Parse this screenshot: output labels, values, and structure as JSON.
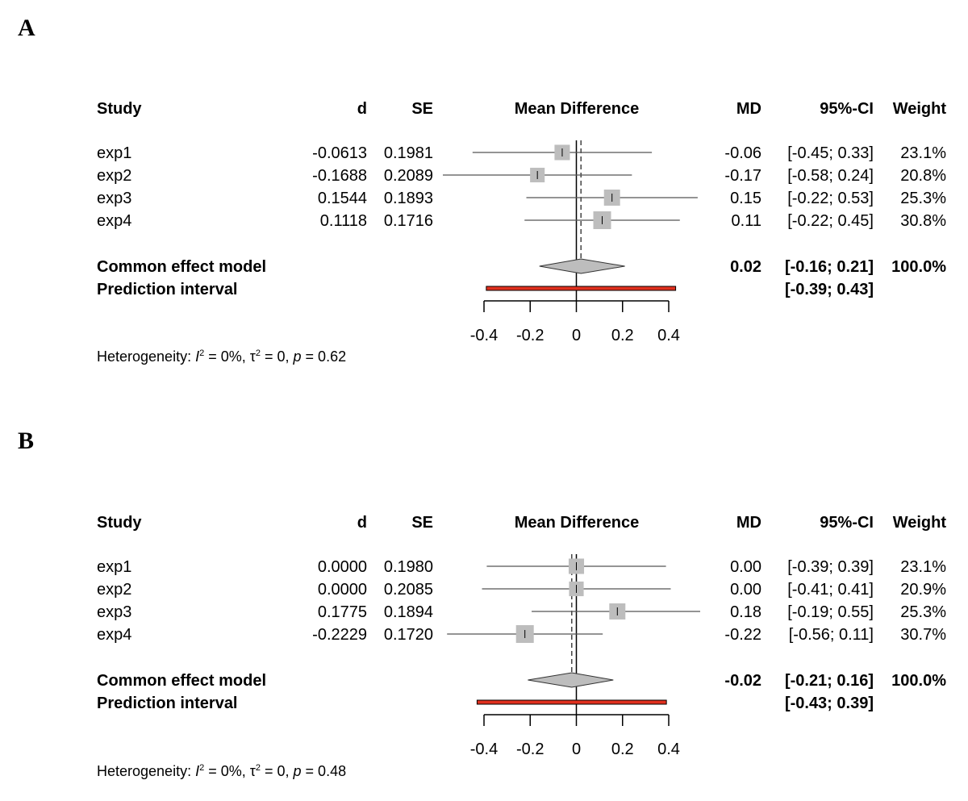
{
  "panels": [
    {
      "letter": "A",
      "headers": {
        "study": "Study",
        "d": "d",
        "se": "SE",
        "plot": "Mean Difference",
        "md": "MD",
        "ci": "95%-CI",
        "weight": "Weight"
      },
      "studies": [
        {
          "name": "exp1",
          "d": "-0.0613",
          "se": "0.1981",
          "md_text": "-0.06",
          "ci_text": "[-0.45; 0.33]",
          "weight_text": "23.1%",
          "md": -0.0613,
          "lower": -0.4496,
          "upper": 0.327,
          "weight": 23.1
        },
        {
          "name": "exp2",
          "d": "-0.1688",
          "se": "0.2089",
          "md_text": "-0.17",
          "ci_text": "[-0.58; 0.24]",
          "weight_text": "20.8%",
          "md": -0.1688,
          "lower": -0.5782,
          "upper": 0.2406,
          "weight": 20.8
        },
        {
          "name": "exp3",
          "d": "0.1544",
          "se": "0.1893",
          "md_text": "0.15",
          "ci_text": "[-0.22; 0.53]",
          "weight_text": "25.3%",
          "md": 0.1544,
          "lower": -0.2166,
          "upper": 0.5254,
          "weight": 25.3
        },
        {
          "name": "exp4",
          "d": "0.1118",
          "se": "0.1716",
          "md_text": "0.11",
          "ci_text": "[-0.22; 0.45]",
          "weight_text": "30.8%",
          "md": 0.1118,
          "lower": -0.2245,
          "upper": 0.4481,
          "weight": 30.8
        }
      ],
      "common": {
        "label": "Common effect model",
        "md_text": "0.02",
        "ci_text": "[-0.16; 0.21]",
        "weight_text": "100.0%",
        "md": 0.02,
        "lower": -0.16,
        "upper": 0.21
      },
      "prediction": {
        "label": "Prediction interval",
        "ci_text": "[-0.39; 0.43]",
        "lower": -0.39,
        "upper": 0.43
      },
      "axis": {
        "min": -0.4,
        "max": 0.4,
        "ticks": [
          -0.4,
          -0.2,
          0,
          0.2,
          0.4
        ],
        "tick_labels": [
          "-0.4",
          "-0.2",
          "0",
          "0.2",
          "0.4"
        ],
        "null_value": 0
      },
      "heterogeneity": {
        "prefix": "Heterogeneity: ",
        "i2": "I",
        "i2_value": " = 0%, ",
        "tau": "τ",
        "tau_value": " = 0, ",
        "p": "p",
        "p_value": " = 0.62"
      }
    },
    {
      "letter": "B",
      "headers": {
        "study": "Study",
        "d": "d",
        "se": "SE",
        "plot": "Mean Difference",
        "md": "MD",
        "ci": "95%-CI",
        "weight": "Weight"
      },
      "studies": [
        {
          "name": "exp1",
          "d": "0.0000",
          "se": "0.1980",
          "md_text": "0.00",
          "ci_text": "[-0.39; 0.39]",
          "weight_text": "23.1%",
          "md": 0.0,
          "lower": -0.3881,
          "upper": 0.3881,
          "weight": 23.1
        },
        {
          "name": "exp2",
          "d": "0.0000",
          "se": "0.2085",
          "md_text": "0.00",
          "ci_text": "[-0.41; 0.41]",
          "weight_text": "20.9%",
          "md": 0.0,
          "lower": -0.4087,
          "upper": 0.4087,
          "weight": 20.9
        },
        {
          "name": "exp3",
          "d": "0.1775",
          "se": "0.1894",
          "md_text": "0.18",
          "ci_text": "[-0.19; 0.55]",
          "weight_text": "25.3%",
          "md": 0.1775,
          "lower": -0.1937,
          "upper": 0.5487,
          "weight": 25.3
        },
        {
          "name": "exp4",
          "d": "-0.2229",
          "se": "0.1720",
          "md_text": "-0.22",
          "ci_text": "[-0.56; 0.11]",
          "weight_text": "30.7%",
          "md": -0.2229,
          "lower": -0.56,
          "upper": 0.1142,
          "weight": 30.7
        }
      ],
      "common": {
        "label": "Common effect model",
        "md_text": "-0.02",
        "ci_text": "[-0.21; 0.16]",
        "weight_text": "100.0%",
        "md": -0.02,
        "lower": -0.21,
        "upper": 0.16
      },
      "prediction": {
        "label": "Prediction interval",
        "ci_text": "[-0.43; 0.39]",
        "lower": -0.43,
        "upper": 0.39
      },
      "axis": {
        "min": -0.4,
        "max": 0.4,
        "ticks": [
          -0.4,
          -0.2,
          0,
          0.2,
          0.4
        ],
        "tick_labels": [
          "-0.4",
          "-0.2",
          "0",
          "0.2",
          "0.4"
        ],
        "null_value": 0
      },
      "heterogeneity": {
        "prefix": "Heterogeneity: ",
        "i2": "I",
        "i2_value": " = 0%, ",
        "tau": "τ",
        "tau_value": " = 0, ",
        "p": "p",
        "p_value": " = 0.48"
      }
    }
  ],
  "chart_data": [
    {
      "type": "forest",
      "title": "A",
      "xlabel": "Mean Difference",
      "xlim": [
        -0.4,
        0.4
      ],
      "studies": [
        "exp1",
        "exp2",
        "exp3",
        "exp4"
      ],
      "md": [
        -0.0613,
        -0.1688,
        0.1544,
        0.1118
      ],
      "se": [
        0.1981,
        0.2089,
        0.1893,
        0.1716
      ],
      "ci_lower": [
        -0.45,
        -0.58,
        -0.22,
        -0.22
      ],
      "ci_upper": [
        0.33,
        0.24,
        0.53,
        0.45
      ],
      "weights": [
        23.1,
        20.8,
        25.3,
        30.8
      ],
      "common_effect": {
        "md": 0.02,
        "ci": [
          -0.16,
          0.21
        ]
      },
      "prediction_interval": [
        -0.39,
        0.43
      ]
    },
    {
      "type": "forest",
      "title": "B",
      "xlabel": "Mean Difference",
      "xlim": [
        -0.4,
        0.4
      ],
      "studies": [
        "exp1",
        "exp2",
        "exp3",
        "exp4"
      ],
      "md": [
        0.0,
        0.0,
        0.1775,
        -0.2229
      ],
      "se": [
        0.198,
        0.2085,
        0.1894,
        0.172
      ],
      "ci_lower": [
        -0.39,
        -0.41,
        -0.19,
        -0.56
      ],
      "ci_upper": [
        0.39,
        0.41,
        0.55,
        0.11
      ],
      "weights": [
        23.1,
        20.9,
        25.3,
        30.7
      ],
      "common_effect": {
        "md": -0.02,
        "ci": [
          -0.21,
          0.16
        ]
      },
      "prediction_interval": [
        -0.43,
        0.39
      ]
    }
  ]
}
